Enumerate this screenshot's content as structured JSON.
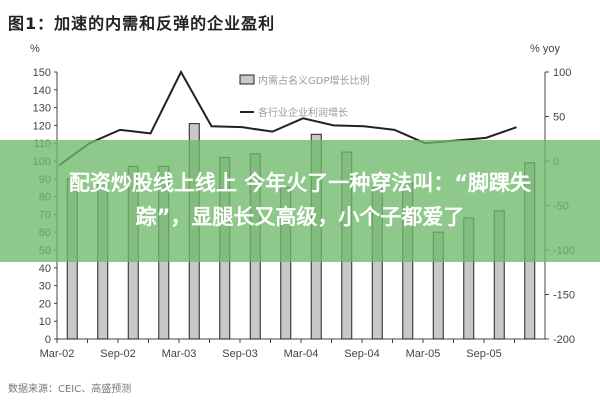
{
  "title": "图1：加速的内需和反弹的企业盈利",
  "source": "数据来源：CEIC、高盛预测",
  "overlay_caption": "配资炒股线上线上 今年火了一种穿法叫：“脚踝失踪”，显腿长又高级，小个子都爱了",
  "colors": {
    "bar": "#c8c8c8",
    "bar_edge": "#222222",
    "line": "#222222",
    "banner": "#6eb969"
  },
  "chart_data": {
    "type": "bar+line",
    "title": "图1：加速的内需和反弹的企业盈利",
    "categories": [
      "Mar-02",
      "Jun-02",
      "Sep-02",
      "Dec-02",
      "Mar-03",
      "Jun-03",
      "Sep-03",
      "Dec-03",
      "Mar-04",
      "Jun-04",
      "Sep-04",
      "Dec-04",
      "Mar-05",
      "Jun-05",
      "Sep-05",
      "Dec-05"
    ],
    "x_tick_labels": [
      "Mar-02",
      "Sep-02",
      "Mar-03",
      "Sep-03",
      "Mar-04",
      "Sep-04",
      "Mar-05",
      "Sep-05"
    ],
    "left_axis": {
      "label": "%",
      "ylim": [
        0,
        150
      ],
      "ticks": [
        0,
        10,
        20,
        30,
        40,
        50,
        60,
        70,
        80,
        90,
        100,
        110,
        120,
        130,
        140,
        150
      ]
    },
    "right_axis": {
      "label": "% yoy",
      "ylim": [
        -200,
        100
      ],
      "ticks": [
        -200,
        -150,
        -100,
        -50,
        0,
        50,
        100
      ]
    },
    "series": [
      {
        "name": "内需占名义GDP增长比例",
        "type": "bar",
        "axis": "left",
        "values": [
          90,
          88,
          97,
          97,
          121,
          102,
          104,
          85,
          115,
          105,
          85,
          88,
          60,
          68,
          72,
          99
        ]
      },
      {
        "name": "各行业企业利润增长",
        "type": "line",
        "axis": "right",
        "values": [
          -5,
          20,
          35,
          31,
          100,
          39,
          38,
          33,
          48,
          40,
          39,
          35,
          20,
          23,
          26,
          38
        ]
      }
    ],
    "legend_position": "top-center",
    "grid": false
  }
}
